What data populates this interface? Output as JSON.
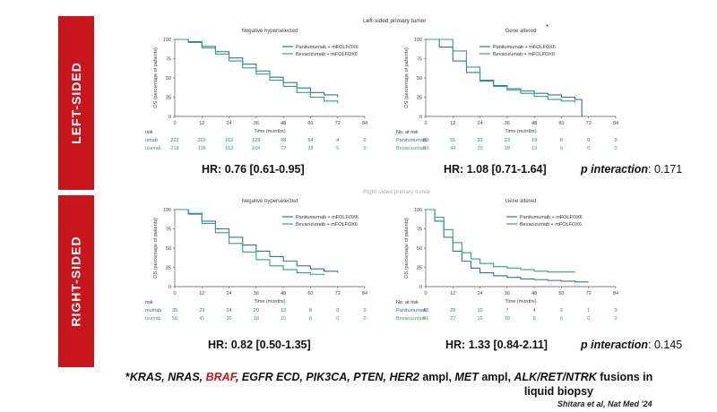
{
  "sidebar": {
    "left": "LEFT-SIDED",
    "right": "RIGHT-SIDED"
  },
  "colors": {
    "panitumumab": "#2f6fb8",
    "bevacizumab": "#2fa865",
    "accent": "#c8161d"
  },
  "super_title_top": "Left-sided primary tumor",
  "super_title_bottom": "Right-sided primary tumor",
  "chart_data": [
    {
      "type": "line",
      "id": "tl",
      "title": "Negative hyperselected",
      "xlabel": "Time (months)",
      "ylabel": "OS (percentage of patients)",
      "xlim": [
        0,
        84
      ],
      "ylim": [
        0,
        100
      ],
      "xticks": [
        0,
        12,
        24,
        36,
        48,
        60,
        72,
        84
      ],
      "yticks": [
        0,
        25,
        50,
        75,
        100
      ],
      "risk_header": "risk",
      "series": [
        {
          "name": "Panitumumab + mFOLFOX6",
          "risk_label": "umab",
          "x": [
            0,
            6,
            12,
            18,
            24,
            30,
            36,
            42,
            48,
            54,
            60,
            66,
            72
          ],
          "y": [
            100,
            97,
            91,
            84,
            76,
            68,
            59,
            51,
            44,
            37,
            31,
            28,
            25
          ],
          "risk": [
            222,
            201,
            162,
            129,
            98,
            54,
            4,
            0
          ]
        },
        {
          "name": "Bevacizumab + mFOLFOX6",
          "risk_label": "izumab",
          "x": [
            0,
            6,
            12,
            18,
            24,
            30,
            36,
            42,
            48,
            54,
            60,
            66,
            72
          ],
          "y": [
            100,
            96,
            89,
            81,
            72,
            63,
            55,
            47,
            39,
            31,
            25,
            20,
            17
          ],
          "risk": [
            218,
            198,
            163,
            104,
            72,
            28,
            5,
            0
          ]
        }
      ],
      "hr": "HR: 0.76 [0.61-0.95]"
    },
    {
      "type": "line",
      "id": "tr",
      "title": "Gene altered",
      "title_mark": "*",
      "xlabel": "Time (months)",
      "ylabel": "OS (percentage of patients)",
      "xlim": [
        0,
        84
      ],
      "ylim": [
        0,
        100
      ],
      "xticks": [
        0,
        12,
        24,
        36,
        48,
        60,
        72,
        84
      ],
      "yticks": [
        0,
        25,
        50,
        75,
        100
      ],
      "risk_header": "No. at risk",
      "series": [
        {
          "name": "Panitumumab + mFOLFOX6",
          "risk_label": "Panitumumab",
          "x": [
            0,
            6,
            12,
            18,
            24,
            30,
            36,
            42,
            48,
            54,
            60,
            66,
            68,
            69
          ],
          "y": [
            100,
            90,
            72,
            57,
            46,
            40,
            36,
            33,
            30,
            28,
            25,
            22,
            22,
            0
          ],
          "risk": [
            60,
            51,
            33,
            23,
            19,
            6,
            0,
            0
          ]
        },
        {
          "name": "Bevacizumab + mFOLFOX6",
          "risk_label": "Bevacizumab",
          "x": [
            0,
            6,
            12,
            18,
            24,
            30,
            36,
            42,
            48,
            54,
            60,
            66
          ],
          "y": [
            100,
            100,
            85,
            64,
            47,
            39,
            34,
            30,
            26,
            22,
            20,
            18
          ],
          "risk": [
            49,
            44,
            29,
            18,
            13,
            6,
            0,
            0
          ]
        }
      ],
      "hr": "HR: 1.08 [0.71-1.64]",
      "p_label": "p interaction",
      "p_value": ": 0.171"
    },
    {
      "type": "line",
      "id": "bl",
      "title": "Negative hyperselected",
      "xlabel": "Time (months)",
      "ylabel": "OS (percentage of patients)",
      "xlim": [
        0,
        84
      ],
      "ylim": [
        0,
        100
      ],
      "xticks": [
        0,
        12,
        24,
        36,
        48,
        60,
        72,
        84
      ],
      "yticks": [
        0,
        25,
        50,
        75,
        100
      ],
      "risk_header": "risk",
      "series": [
        {
          "name": "Panitumumab + mFOLFOX6",
          "risk_label": "mumab",
          "x": [
            0,
            6,
            12,
            18,
            24,
            30,
            36,
            42,
            48,
            54,
            60,
            66,
            72
          ],
          "y": [
            100,
            95,
            85,
            75,
            64,
            54,
            46,
            39,
            33,
            27,
            23,
            20,
            18
          ],
          "risk": [
            35,
            29,
            24,
            20,
            13,
            8,
            0,
            0
          ]
        },
        {
          "name": "Bevacizumab + mFOLFOX6",
          "risk_label": "izumab",
          "x": [
            0,
            6,
            12,
            18,
            24,
            30,
            36,
            42,
            48,
            54,
            60,
            66
          ],
          "y": [
            100,
            94,
            82,
            70,
            56,
            45,
            35,
            27,
            22,
            18,
            16,
            15
          ],
          "risk": [
            50,
            41,
            30,
            18,
            15,
            8,
            0,
            0
          ]
        }
      ],
      "hr": "HR: 0.82 [0.50-1.35]"
    },
    {
      "type": "line",
      "id": "br",
      "title": "Gene altered",
      "title_mark": "*",
      "xlabel": "Time (months)",
      "ylabel": "OS (percentage of patients)",
      "xlim": [
        0,
        84
      ],
      "ylim": [
        0,
        100
      ],
      "xticks": [
        0,
        12,
        24,
        36,
        48,
        60,
        72,
        84
      ],
      "yticks": [
        0,
        25,
        50,
        75,
        100
      ],
      "risk_header": "No. at risk",
      "series": [
        {
          "name": "Panitumumab + mFOLFOX6",
          "risk_label": "Panitumumab",
          "x": [
            0,
            4,
            8,
            12,
            16,
            20,
            24,
            30,
            36,
            42,
            48,
            54,
            60,
            66,
            72
          ],
          "y": [
            100,
            85,
            64,
            46,
            33,
            24,
            18,
            14,
            12,
            10,
            9,
            8,
            7,
            6,
            6
          ],
          "risk": [
            43,
            26,
            10,
            7,
            4,
            3,
            1,
            0
          ]
        },
        {
          "name": "Bevacizumab + mFOLFOX6",
          "risk_label": "Bevacizumab",
          "x": [
            0,
            4,
            8,
            12,
            16,
            20,
            24,
            30,
            36,
            42,
            48,
            54,
            60,
            66
          ],
          "y": [
            100,
            90,
            74,
            57,
            44,
            36,
            30,
            26,
            24,
            22,
            20,
            19,
            19,
            19
          ],
          "risk": [
            41,
            27,
            16,
            10,
            8,
            6,
            0,
            0
          ]
        }
      ],
      "hr": "HR: 1.33 [0.84-2.11]",
      "p_label": "p interaction",
      "p_value": ": 0.145"
    }
  ],
  "footnote": {
    "star": "*",
    "part1": "KRAS, NRAS, ",
    "braf": "BRAF",
    "part2": ", EGFR ECD, PIK3CA, PTEN, HER2 ",
    "ampl1": "ampl, ",
    "met": "MET ",
    "ampl2": "ampl, ",
    "alk": "ALK/RET/NTRK ",
    "fusions": "fusions in",
    "line2": "liquid biopsy"
  },
  "citation": "Shitara et al, Nat Med '24"
}
